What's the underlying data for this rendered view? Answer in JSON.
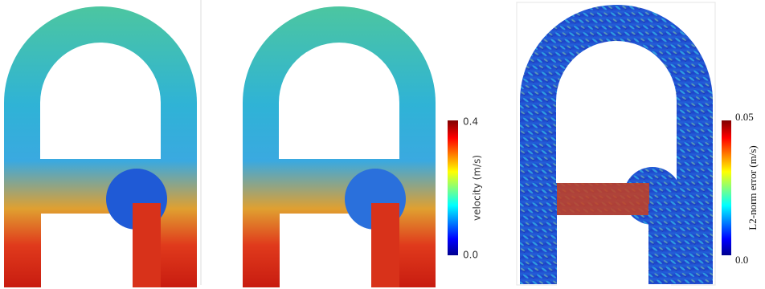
{
  "colorbars": [
    {
      "label": "velocity (m/s)",
      "max": "0.4",
      "min": "0.0"
    },
    {
      "label": "L2-norm error (m/s)",
      "max": "0.05",
      "min": "0.0"
    }
  ]
}
